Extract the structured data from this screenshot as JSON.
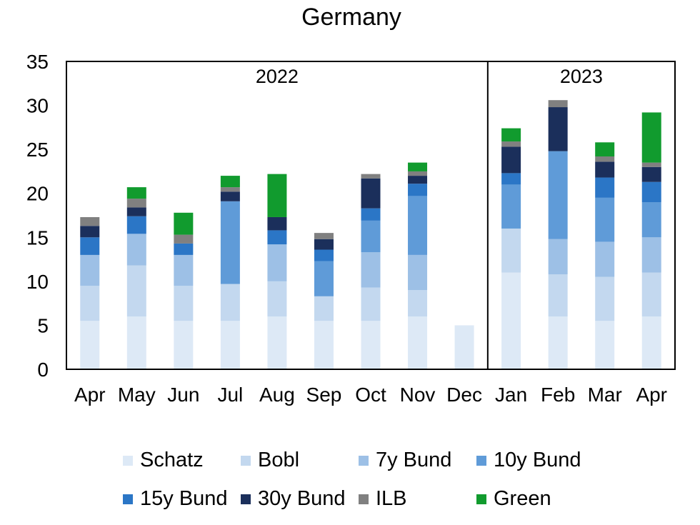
{
  "chart_data": {
    "type": "bar",
    "stacked": true,
    "title": "Germany",
    "xlabel": "",
    "ylabel": "",
    "ylim": [
      0,
      35
    ],
    "yticks": [
      0,
      5,
      10,
      15,
      20,
      25,
      30,
      35
    ],
    "grid": false,
    "legend_position": "bottom",
    "categories": [
      "Apr",
      "May",
      "Jun",
      "Jul",
      "Aug",
      "Sep",
      "Oct",
      "Nov",
      "Dec",
      "Jan",
      "Feb",
      "Mar",
      "Apr"
    ],
    "year_groups": [
      {
        "label": "2022",
        "from": 0,
        "to": 8
      },
      {
        "label": "2023",
        "from": 9,
        "to": 12
      }
    ],
    "series": [
      {
        "name": "Schatz",
        "color": "#dde9f6",
        "values": [
          5.5,
          6,
          5.5,
          5.5,
          6,
          5.5,
          5.5,
          6,
          5,
          11,
          6,
          5.5,
          6
        ]
      },
      {
        "name": "Bobl",
        "color": "#c3d8ef",
        "values": [
          4,
          5.8,
          4,
          4.2,
          4,
          2.8,
          3.8,
          3,
          0,
          5,
          4.8,
          5,
          5
        ]
      },
      {
        "name": "7y Bund",
        "color": "#9dc0e6",
        "values": [
          3.5,
          3.6,
          3.5,
          0,
          4.2,
          0,
          4,
          4,
          0,
          0,
          4,
          4,
          4
        ]
      },
      {
        "name": "10y Bund",
        "color": "#5f9bd8",
        "values": [
          0,
          0,
          0,
          9.4,
          0,
          4,
          3.6,
          6.7,
          0,
          5,
          10,
          5,
          4
        ]
      },
      {
        "name": "15y Bund",
        "color": "#2b76c6",
        "values": [
          2,
          2,
          1.3,
          0,
          1.6,
          1.3,
          1.4,
          1.4,
          0,
          1.3,
          0,
          2.3,
          2.3
        ]
      },
      {
        "name": "30y Bund",
        "color": "#1b2f5b",
        "values": [
          1.3,
          1,
          0,
          1.1,
          1.5,
          1.2,
          3.4,
          0.9,
          0,
          3,
          5,
          1.8,
          1.7
        ]
      },
      {
        "name": "ILB",
        "color": "#808080",
        "values": [
          1,
          1,
          1,
          0.5,
          0,
          0.7,
          0.5,
          0.5,
          0,
          0.6,
          0.8,
          0.6,
          0.5
        ]
      },
      {
        "name": "Green",
        "color": "#119b2e",
        "values": [
          0,
          1.3,
          2.5,
          1.3,
          4.9,
          0,
          0,
          1,
          0,
          1.5,
          0,
          1.6,
          5.7
        ]
      }
    ]
  }
}
